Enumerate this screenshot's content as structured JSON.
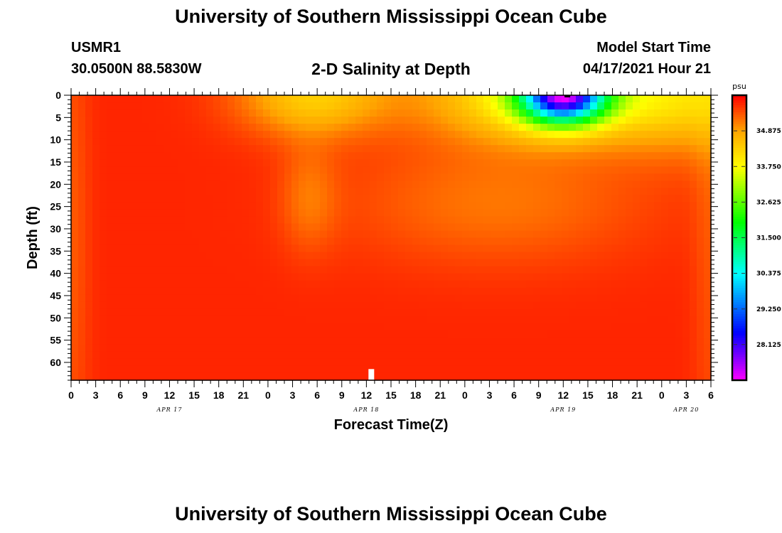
{
  "header": {
    "title": "University of Southern Mississippi Ocean Cube",
    "station_id": "USMR1",
    "station_coords": "30.0500N  88.5830W",
    "plot_title": "2-D Salinity at Depth",
    "start_label": "Model Start Time",
    "start_value": "04/17/2021 Hour 21"
  },
  "footer": {
    "title": "University of Southern Mississippi Ocean Cube"
  },
  "colors": {
    "frame": "#000000",
    "background": "#ffffff"
  },
  "chart_data": {
    "type": "heatmap",
    "xlabel": "Forecast Time(Z)",
    "ylabel": "Depth (ft)",
    "x_unit": "hours after 04/17/2021 00Z",
    "xlim": [
      0,
      78
    ],
    "ylim": [
      0,
      64
    ],
    "y_inverted": true,
    "x_tick_labels": [
      "0",
      "3",
      "6",
      "9",
      "12",
      "15",
      "18",
      "21",
      "0",
      "3",
      "6",
      "9",
      "12",
      "15",
      "18",
      "21",
      "0",
      "3",
      "6",
      "9",
      "12",
      "15",
      "18",
      "21",
      "0",
      "3",
      "6"
    ],
    "y_ticks": [
      0,
      5,
      10,
      15,
      20,
      25,
      30,
      35,
      40,
      45,
      50,
      55,
      60
    ],
    "date_labels": [
      {
        "label": "APR 17",
        "x": 12
      },
      {
        "label": "APR 18",
        "x": 36
      },
      {
        "label": "APR 19",
        "x": 60
      },
      {
        "label": "APR 20",
        "x": 75
      }
    ],
    "colorbar": {
      "unit": "psu",
      "min": 27.0,
      "max": 36.0,
      "tick_values": [
        28.125,
        29.25,
        30.375,
        31.5,
        32.625,
        33.75,
        34.875
      ],
      "tick_labels": [
        "28.125",
        "29.250",
        "30.375",
        "31.500",
        "32.625",
        "33.750",
        "34.875"
      ],
      "stops": [
        {
          "value": 27.0,
          "color": "#ff00ff"
        },
        {
          "value": 28.5,
          "color": "#0000ff"
        },
        {
          "value": 30.375,
          "color": "#00ffff"
        },
        {
          "value": 32.0,
          "color": "#00ff00"
        },
        {
          "value": 33.75,
          "color": "#ffff00"
        },
        {
          "value": 34.875,
          "color": "#ffa500"
        },
        {
          "value": 36.0,
          "color": "#ff0000"
        }
      ]
    },
    "field": {
      "baseline": 35.75,
      "features": [
        {
          "kind": "gaussian",
          "x": 29.5,
          "y": 0,
          "sx": 9,
          "sy": 9,
          "amp": -1.35
        },
        {
          "kind": "gaussian",
          "x": 29.0,
          "y": 23,
          "sx": 3.5,
          "sy": 12,
          "amp": -0.5
        },
        {
          "kind": "gaussian",
          "x": 58.5,
          "y": 0,
          "sx": 14,
          "sy": 10,
          "amp": -2.2
        },
        {
          "kind": "gaussian",
          "x": 60.0,
          "y": 0,
          "sx": 5,
          "sy": 6,
          "amp": -6.5
        },
        {
          "kind": "gaussian",
          "x": 76.0,
          "y": 0,
          "sx": 10,
          "sy": 13,
          "amp": -1.1
        },
        {
          "kind": "gaussian",
          "x": 52.0,
          "y": 24,
          "sx": 18,
          "sy": 14,
          "amp": -0.55
        },
        {
          "kind": "gaussian",
          "x": 0,
          "y": 32,
          "sx": 2.2,
          "sy": 60,
          "amp": -0.35
        },
        {
          "kind": "gaussian",
          "x": 78,
          "y": 32,
          "sx": 2.2,
          "sy": 60,
          "amp": -0.3
        }
      ]
    },
    "markers": [
      {
        "x": 36.6,
        "y_top": 61.5,
        "y_bottom": 64,
        "color": "#ffffff"
      },
      {
        "x": 60.5,
        "y_top": 0,
        "y_bottom": 0.4,
        "color": "#000000"
      }
    ]
  }
}
